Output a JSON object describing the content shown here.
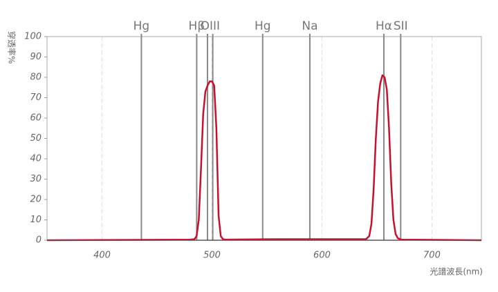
{
  "chart_data": {
    "type": "line",
    "y_label": "穿透率%",
    "x_label": "光譜波長(nm)",
    "x": [
      350,
      480,
      484,
      486,
      488,
      490,
      492,
      494,
      496,
      498,
      500,
      502,
      504,
      506,
      508,
      510,
      512,
      560,
      620,
      640,
      643,
      645,
      647,
      649,
      651,
      653,
      655,
      657,
      659,
      661,
      663,
      665,
      667,
      669,
      672,
      745
    ],
    "series": [
      {
        "color": "#c8102e",
        "values": [
          0,
          0.3,
          0.5,
          2,
          10,
          35,
          62,
          73,
          76,
          78,
          78,
          76,
          55,
          12,
          2,
          0.5,
          0.3,
          0.5,
          0.5,
          0.5,
          2,
          8,
          25,
          50,
          68,
          77,
          81,
          80,
          74,
          55,
          28,
          10,
          3,
          1,
          0.3,
          0
        ]
      }
    ],
    "reference_lines": [
      {
        "label": "Hg",
        "x": [
          435.8
        ]
      },
      {
        "label": "Hβ",
        "x": [
          486.1
        ]
      },
      {
        "label": "OIII",
        "x": [
          495.9,
          500.7
        ]
      },
      {
        "label": "Hg",
        "x": [
          546.1
        ]
      },
      {
        "label": "Na",
        "x": [
          589.0
        ]
      },
      {
        "label": "Hα",
        "x": [
          656.3
        ]
      },
      {
        "label": "SII",
        "x": [
          671.6
        ]
      }
    ],
    "xlim": [
      350,
      745
    ],
    "ylim": [
      0,
      100
    ],
    "xticks": [
      400,
      500,
      600,
      700
    ],
    "yticks": [
      0,
      10,
      20,
      30,
      40,
      50,
      60,
      70,
      80,
      90,
      100
    ],
    "grid": true
  }
}
